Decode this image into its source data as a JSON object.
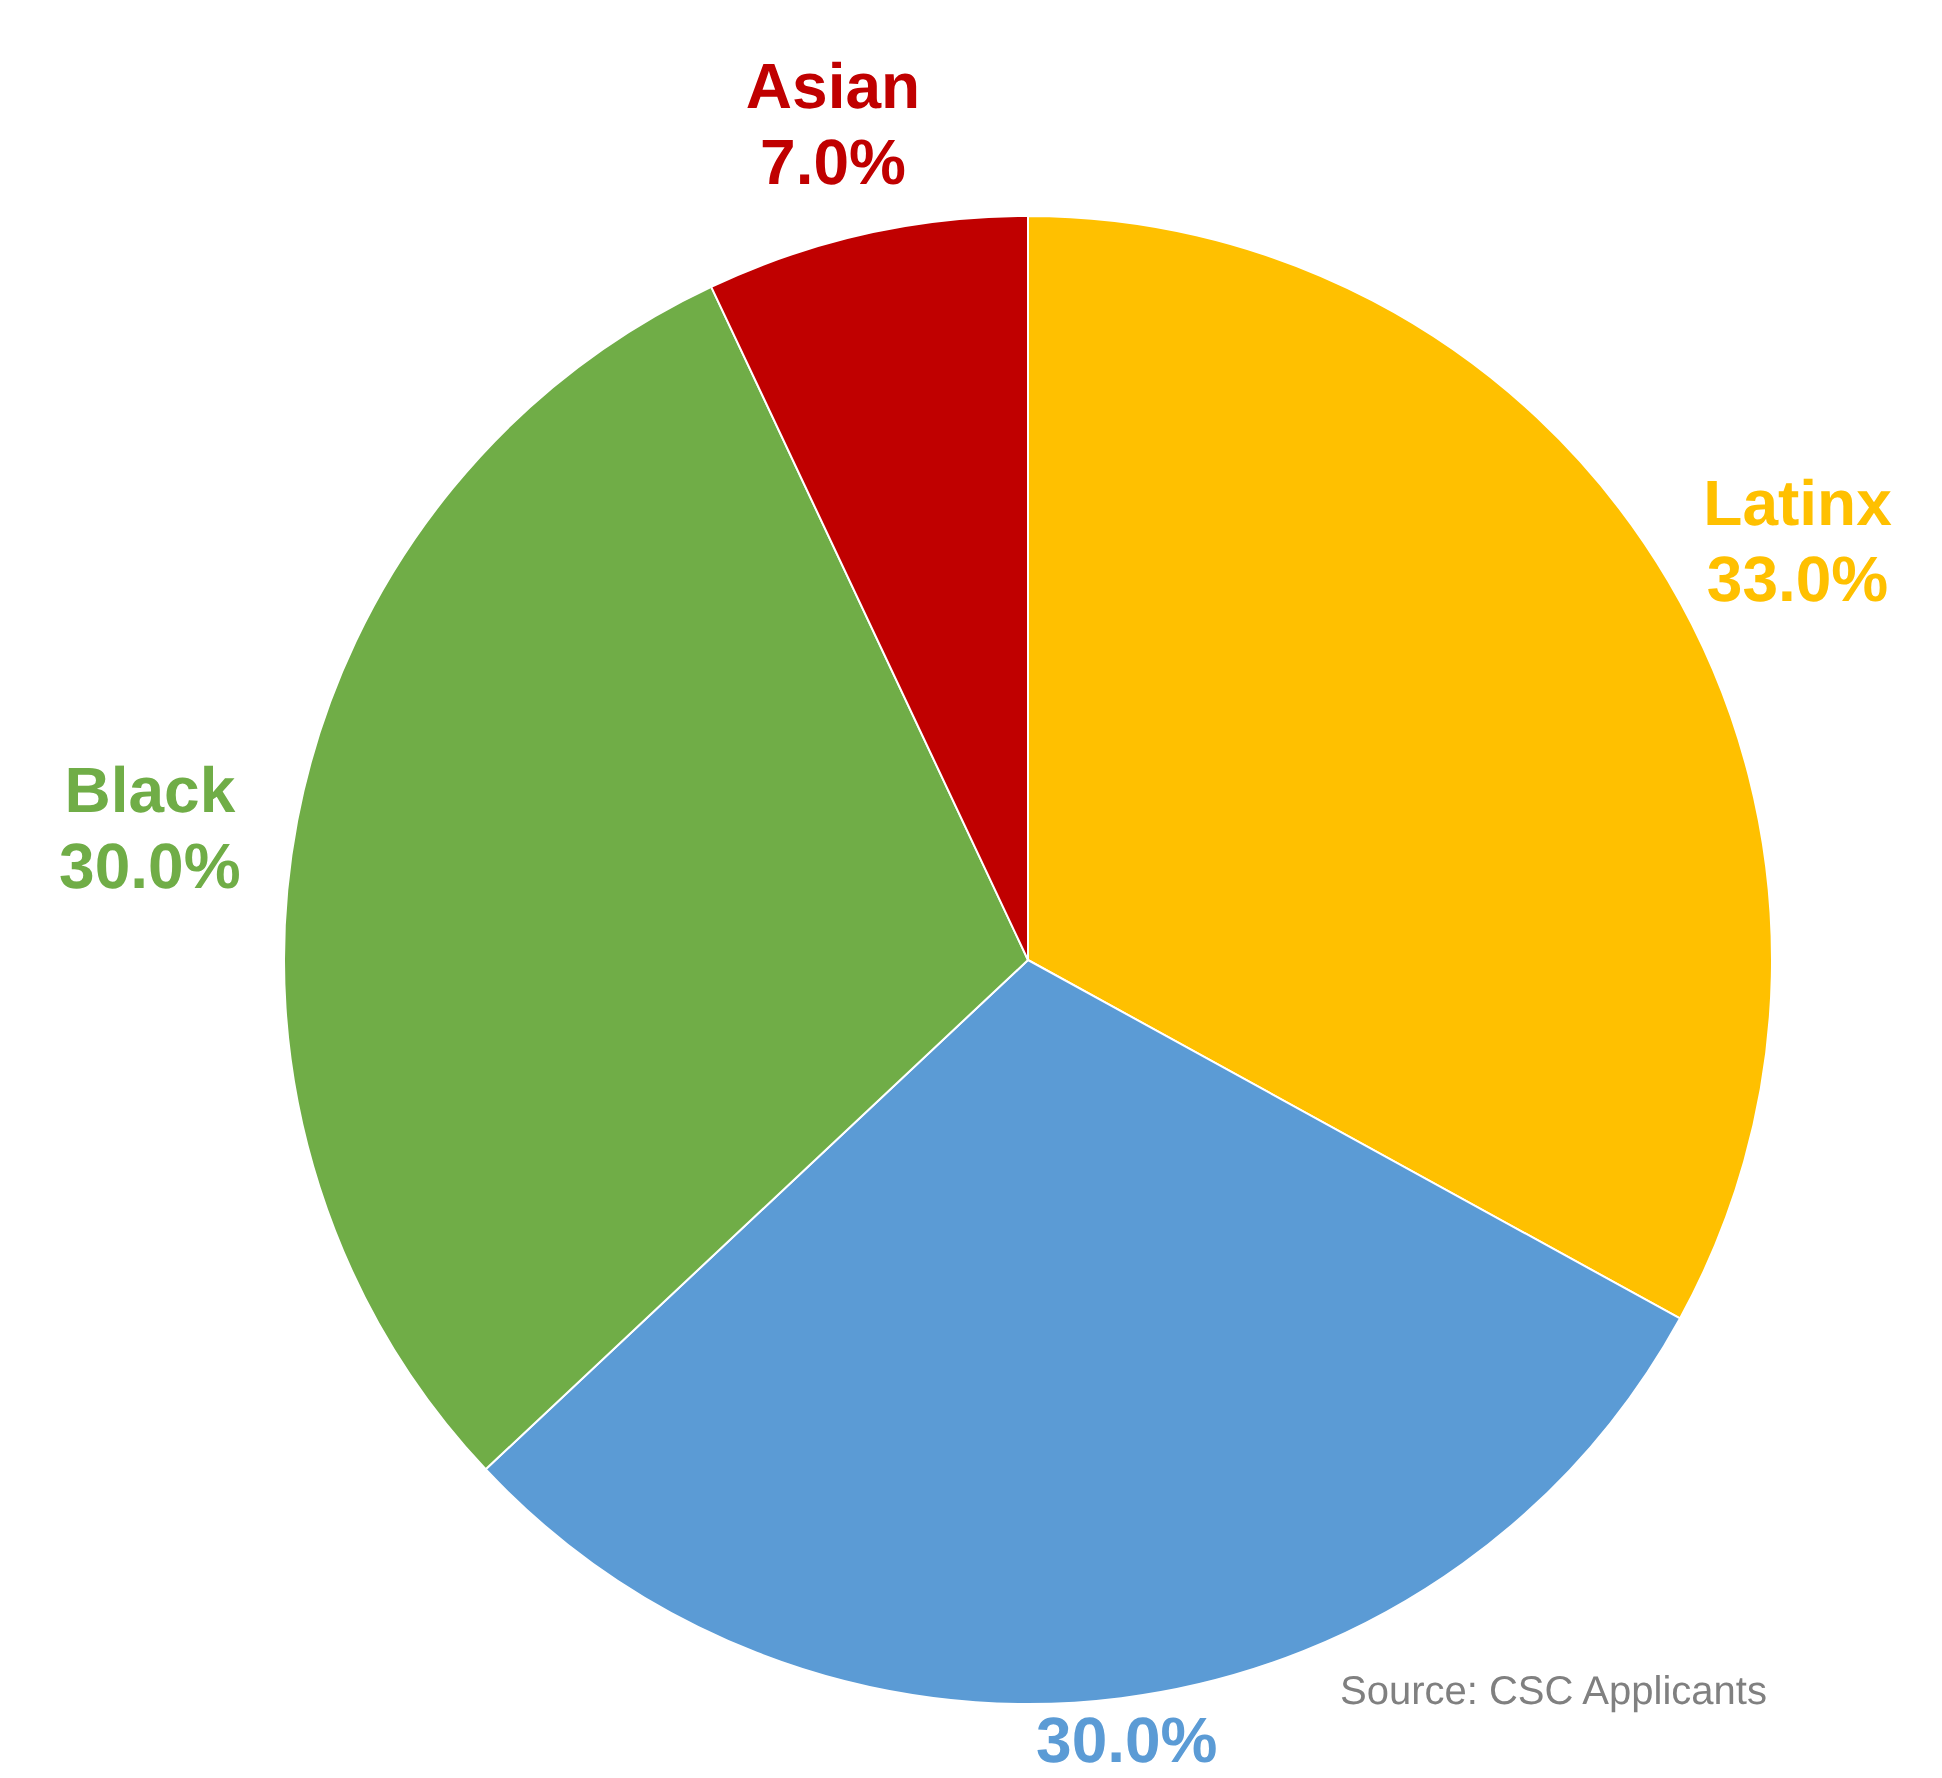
{
  "chart_data": {
    "type": "pie",
    "categories": [
      "Latinx",
      null,
      "Black",
      "Asian"
    ],
    "values": [
      33,
      30,
      30,
      7
    ],
    "value_labels": [
      "33.0%",
      "30.0%",
      "30.0%",
      "7.0%"
    ],
    "colors": [
      "#ffc000",
      "#5b9bd5",
      "#70ad47",
      "#c00000"
    ],
    "annotations": [
      "Source: CSC Applicants"
    ]
  }
}
